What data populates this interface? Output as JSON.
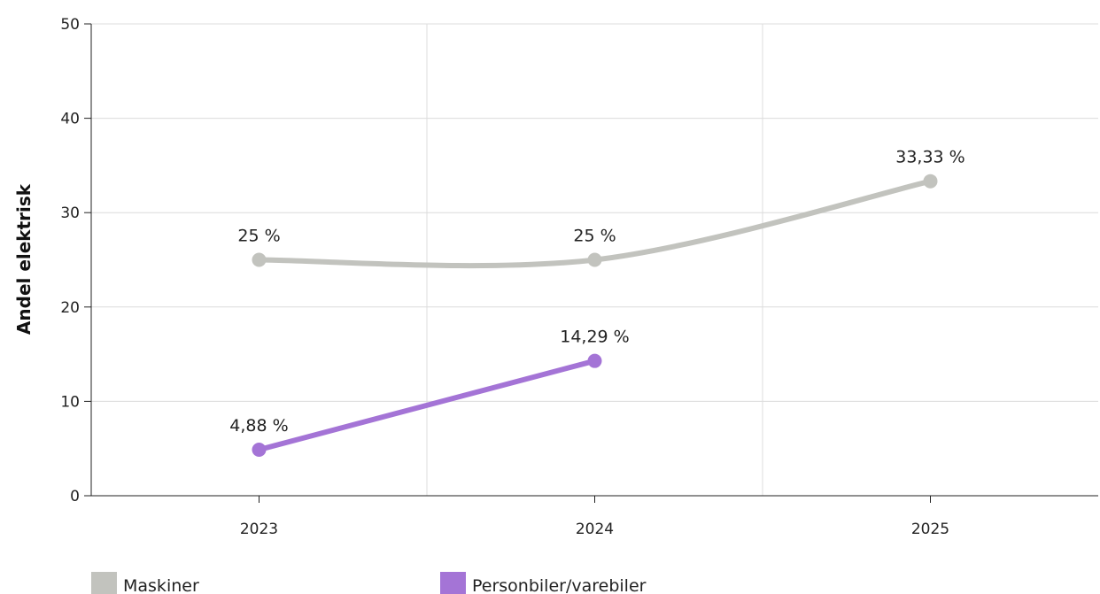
{
  "chart_data": {
    "type": "line",
    "title": "",
    "xlabel": "",
    "ylabel": "Andel elektrisk",
    "categories": [
      "2023",
      "2024",
      "2025"
    ],
    "ylim": [
      0,
      50
    ],
    "yticks": [
      0,
      10,
      20,
      30,
      40,
      50
    ],
    "grid": true,
    "legend_position": "bottom",
    "series": [
      {
        "name": "Maskiner",
        "color": "#c2c3be",
        "smooth": true,
        "values": [
          25,
          25,
          33.33
        ],
        "labels": [
          "25 %",
          "25 %",
          "33,33 %"
        ]
      },
      {
        "name": "Personbiler/varebiler",
        "color": "#a474d6",
        "smooth": false,
        "values": [
          4.88,
          14.29,
          null
        ],
        "labels": [
          "4,88 %",
          "14,29 %",
          null
        ]
      }
    ]
  }
}
